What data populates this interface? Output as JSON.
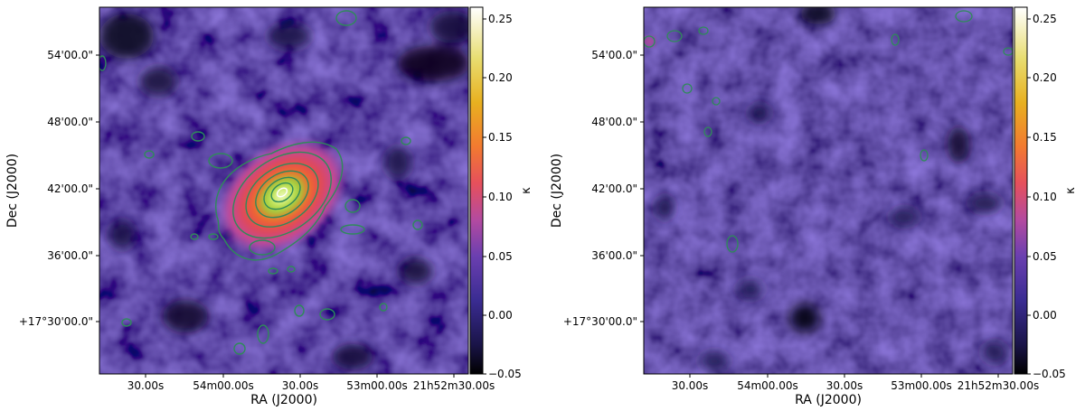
{
  "panels": [
    {
      "id": "left",
      "xlabel": "RA (J2000)",
      "ylabel": "Dec (J2000)",
      "xticks": [
        "30.00s",
        "54m00.00s",
        "30.00s",
        "53m00.00s",
        "21h52m30.00s"
      ],
      "yticks": [
        "54'00.0\"",
        "48'00.0\"",
        "42'00.0\"",
        "36'00.0\"",
        "+17°30'00.0\""
      ],
      "colorbar": {
        "label": "κ",
        "ticks": [
          "0.25",
          "0.20",
          "0.15",
          "0.10",
          "0.05",
          "0.00",
          "−0.05"
        ],
        "range": [
          -0.05,
          0.26
        ]
      },
      "description": "convergence map with a strong central peak and contours"
    },
    {
      "id": "right",
      "xlabel": "RA (J2000)",
      "ylabel": "Dec (J2000)",
      "xticks": [
        "30.00s",
        "54m00.00s",
        "30.00s",
        "53m00.00s",
        "21h52m30.00s"
      ],
      "yticks": [
        "54'00.0\"",
        "48'00.0\"",
        "42'00.0\"",
        "36'00.0\"",
        "+17°30'00.0\""
      ],
      "colorbar": {
        "label": "κ",
        "ticks": [
          "0.25",
          "0.20",
          "0.15",
          "0.10",
          "0.05",
          "0.00",
          "−0.05"
        ],
        "range": [
          -0.05,
          0.26
        ]
      },
      "description": "noise map, mostly flat purple"
    }
  ],
  "colors": {
    "background": "#5a42a8",
    "contour": "#2f8a5a",
    "peak_core": "#f2fbb0"
  }
}
